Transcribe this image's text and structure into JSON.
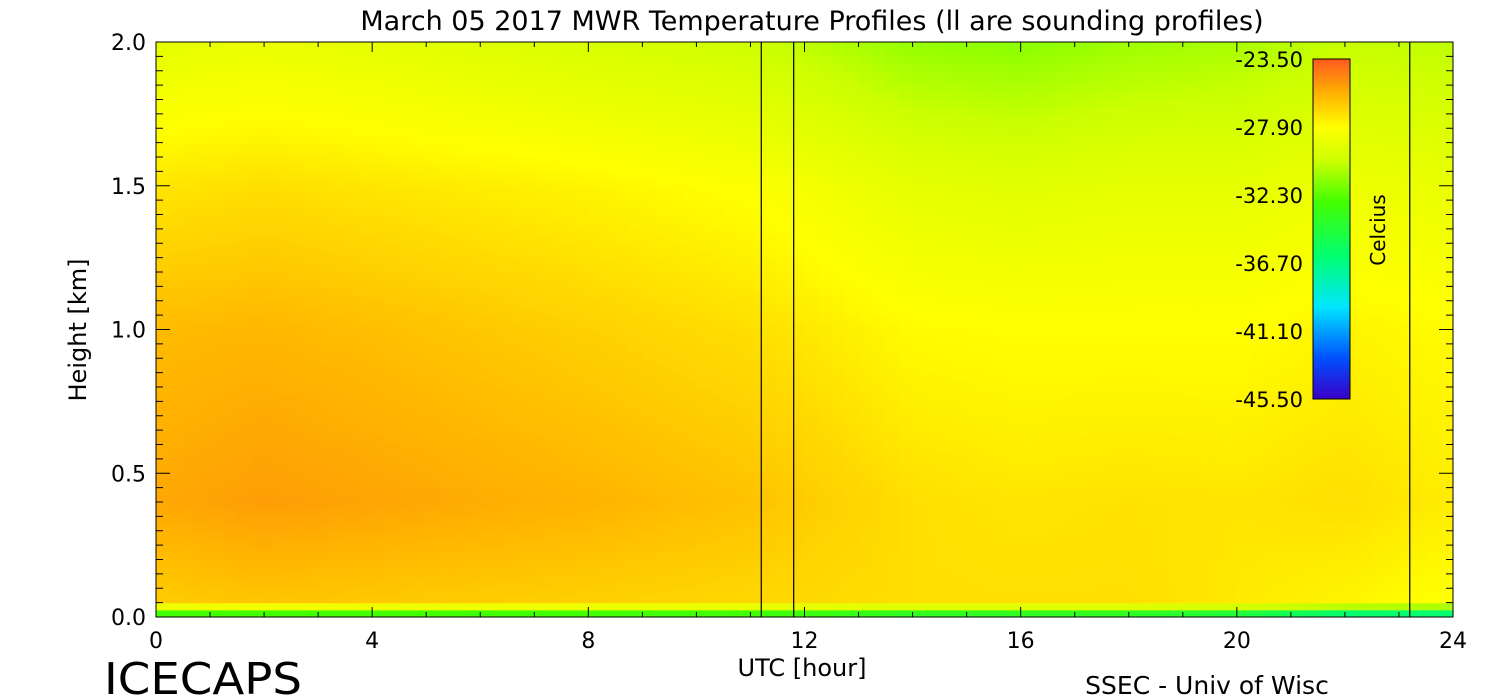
{
  "chart_data": {
    "type": "heatmap",
    "title": "March 05 2017 MWR Temperature Profiles (ll are sounding profiles)",
    "xlabel": "UTC [hour]",
    "ylabel": "Height [km]",
    "xlim": [
      0,
      24
    ],
    "ylim": [
      0,
      2.0
    ],
    "x_ticks": [
      "0",
      "4",
      "8",
      "12",
      "16",
      "20",
      "24"
    ],
    "y_ticks": [
      "0.0",
      "0.5",
      "1.0",
      "1.5",
      "2.0"
    ],
    "colorbar": {
      "label": "Celcius",
      "ticks": [
        "-23.50",
        "-27.90",
        "-32.30",
        "-36.70",
        "-41.10",
        "-45.50"
      ],
      "range": [
        -45.5,
        -23.5
      ]
    },
    "sounding_times": [
      11.2,
      11.8,
      23.2
    ],
    "approx_profiles": [
      {
        "hour": 0,
        "temps": [
          -35,
          -26.5,
          -25.5,
          -26.0,
          -27.2,
          -29.0
        ]
      },
      {
        "hour": 2,
        "temps": [
          -35,
          -26.3,
          -25.2,
          -25.9,
          -27.0,
          -28.8
        ]
      },
      {
        "hour": 4,
        "temps": [
          -35,
          -26.4,
          -25.4,
          -26.1,
          -27.2,
          -29.0
        ]
      },
      {
        "hour": 8,
        "temps": [
          -35,
          -26.6,
          -25.8,
          -26.6,
          -27.6,
          -29.6
        ]
      },
      {
        "hour": 11,
        "temps": [
          -35,
          -26.8,
          -26.2,
          -27.0,
          -28.0,
          -30.0
        ]
      },
      {
        "hour": 14,
        "temps": [
          -36,
          -27.0,
          -27.0,
          -27.8,
          -29.0,
          -31.2
        ]
      },
      {
        "hour": 16,
        "temps": [
          -36,
          -27.0,
          -27.2,
          -27.9,
          -29.2,
          -31.4
        ]
      },
      {
        "hour": 18,
        "temps": [
          -36,
          -27.0,
          -27.1,
          -27.9,
          -29.0,
          -31.0
        ]
      },
      {
        "hour": 20,
        "temps": [
          -37,
          -27.3,
          -27.2,
          -27.9,
          -29.0,
          -30.8
        ]
      },
      {
        "hour": 22,
        "temps": [
          -39,
          -27.6,
          -27.0,
          -27.6,
          -28.6,
          -30.2
        ]
      },
      {
        "hour": 24,
        "temps": [
          -39,
          -28.0,
          -27.4,
          -27.8,
          -28.8,
          -30.4
        ]
      }
    ]
  },
  "footer": {
    "left_text": "ICECAPS",
    "right_text": "SSEC - Univ of Wisc"
  }
}
